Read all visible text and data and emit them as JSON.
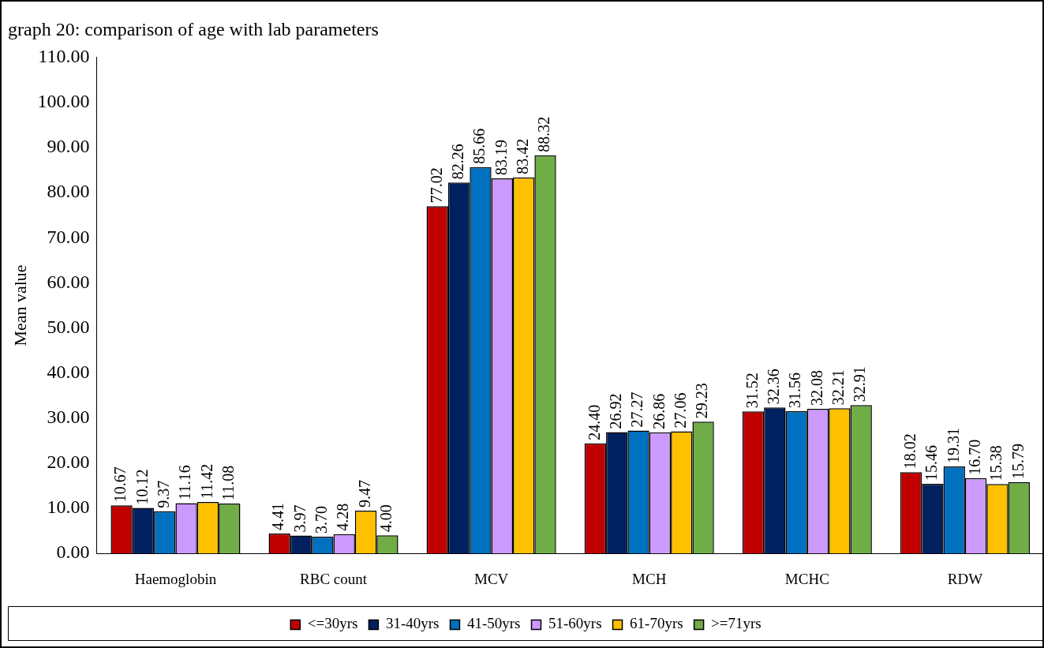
{
  "chart_data": {
    "type": "bar",
    "title": "graph 20: comparison of age with lab parameters",
    "ylabel": "Mean value",
    "categories": [
      "Haemoglobin",
      "RBC count",
      "MCV",
      "MCH",
      "MCHC",
      "RDW"
    ],
    "series": [
      {
        "name": "<=30yrs",
        "color": "#c00000",
        "values": [
          10.67,
          4.41,
          77.02,
          24.4,
          31.52,
          18.02
        ],
        "value_labels": [
          "10.67",
          "4.41",
          "77.02",
          "24.40",
          "31.52",
          "18.02"
        ]
      },
      {
        "name": "31-40yrs",
        "color": "#002060",
        "values": [
          10.12,
          3.97,
          82.26,
          26.92,
          32.36,
          15.46
        ],
        "value_labels": [
          "10.12",
          "3.97",
          "82.26",
          "26.92",
          "32.36",
          "15.46"
        ]
      },
      {
        "name": "41-50yrs",
        "color": "#0070c0",
        "values": [
          9.37,
          3.7,
          85.66,
          27.27,
          31.56,
          19.31
        ],
        "value_labels": [
          "9.37",
          "3.70",
          "85.66",
          "27.27",
          "31.56",
          "19.31"
        ]
      },
      {
        "name": "51-60yrs",
        "color": "#cc99ff",
        "values": [
          11.16,
          4.28,
          83.19,
          26.86,
          32.08,
          16.7
        ],
        "value_labels": [
          "11.16",
          "4.28",
          "83.19",
          "26.86",
          "32.08",
          "16.70"
        ]
      },
      {
        "name": "61-70yrs",
        "color": "#ffc000",
        "values": [
          11.42,
          9.47,
          83.42,
          27.06,
          32.21,
          15.38
        ],
        "value_labels": [
          "11.42",
          "9.47",
          "83.42",
          "27.06",
          "32.21",
          "15.38"
        ]
      },
      {
        "name": ">=71yrs",
        "color": "#70ad47",
        "values": [
          11.08,
          4,
          88.32,
          29.23,
          32.91,
          15.79
        ],
        "value_labels": [
          "11.08",
          "4.00",
          "88.32",
          "29.23",
          "32.91",
          "15.79"
        ]
      }
    ],
    "ylim": [
      0,
      110
    ],
    "yticks": [
      {
        "value": 0,
        "label": "0.00"
      },
      {
        "value": 10,
        "label": "10.00"
      },
      {
        "value": 20,
        "label": "20.00"
      },
      {
        "value": 30,
        "label": "30.00"
      },
      {
        "value": 40,
        "label": "40.00"
      },
      {
        "value": 50,
        "label": "50.00"
      },
      {
        "value": 60,
        "label": "60.00"
      },
      {
        "value": 70,
        "label": "70.00"
      },
      {
        "value": 80,
        "label": "80.00"
      },
      {
        "value": 90,
        "label": "90.00"
      },
      {
        "value": 100,
        "label": "100.00"
      },
      {
        "value": 110,
        "label": "110.00"
      }
    ],
    "grid": false,
    "legend": "bottom"
  }
}
